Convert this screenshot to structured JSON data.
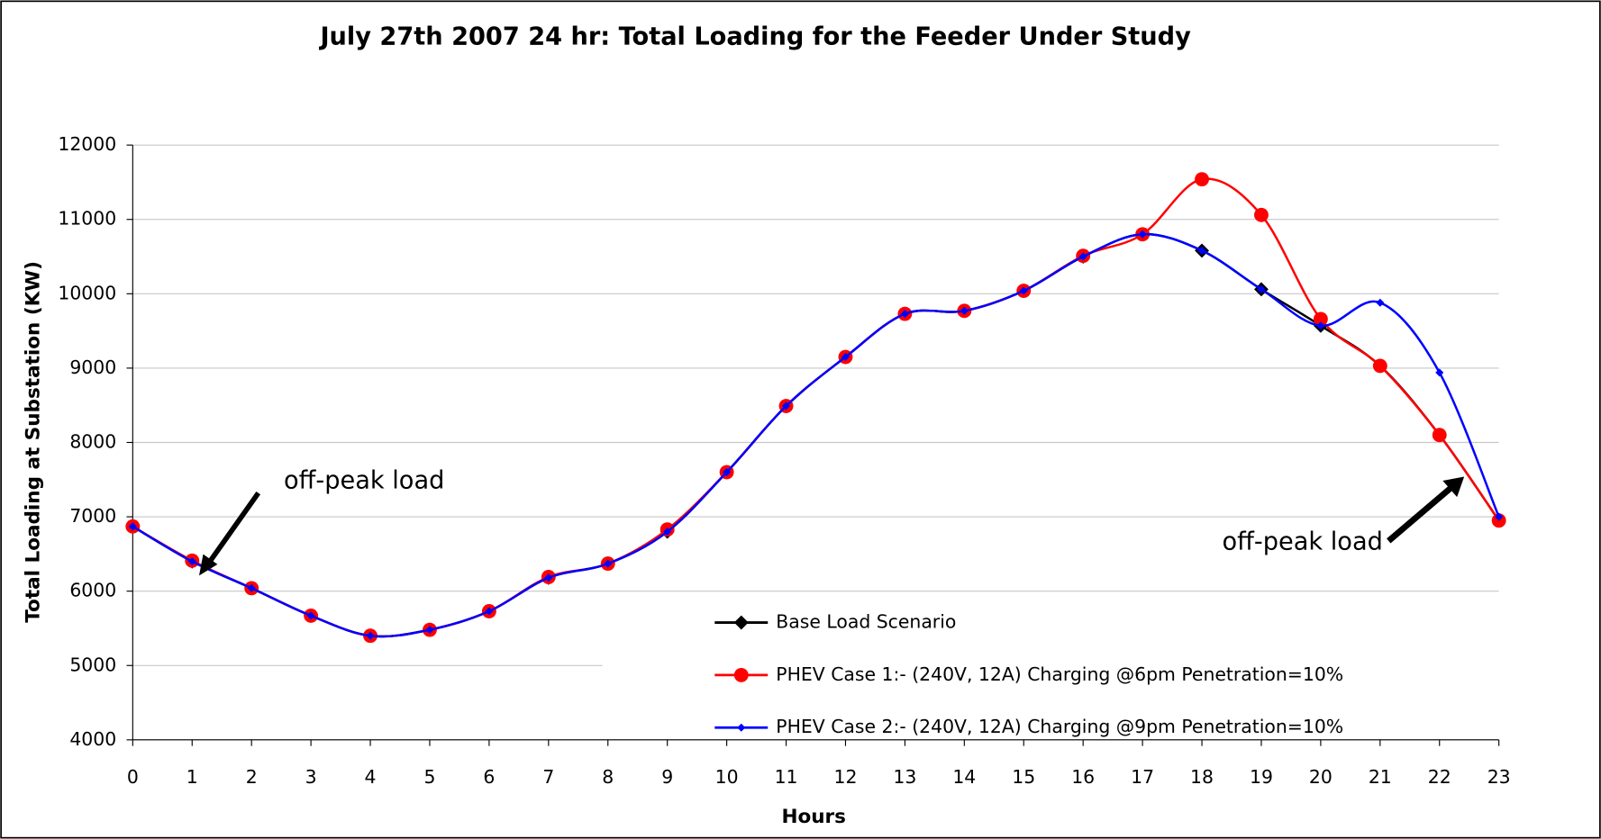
{
  "chart_data": {
    "type": "line",
    "title": "July 27th 2007 24 hr: Total Loading for the Feeder Under Study",
    "x_label": "Hours",
    "y_label": "Total Loading at Substation (KW)",
    "categories": [
      "0",
      "1",
      "2",
      "3",
      "4",
      "5",
      "6",
      "7",
      "8",
      "9",
      "10",
      "11",
      "12",
      "13",
      "14",
      "15",
      "16",
      "17",
      "18",
      "19",
      "20",
      "21",
      "22",
      "23"
    ],
    "series": [
      {
        "name": "Base Load Scenario",
        "color": "#000000",
        "marker": "diamond",
        "marker_size": 7,
        "values": [
          6870,
          6400,
          6040,
          5670,
          5400,
          5480,
          5730,
          6180,
          6370,
          6800,
          7600,
          8490,
          9150,
          9730,
          9770,
          10040,
          10500,
          10800,
          10580,
          10060,
          9570,
          9030,
          8100,
          6950
        ]
      },
      {
        "name": "PHEV Case 1:- (240V, 12A) Charging @6pm Penetration=10%",
        "color": "#ff0000",
        "marker": "circle",
        "marker_size": 7,
        "values": [
          6870,
          6410,
          6040,
          5670,
          5400,
          5480,
          5730,
          6190,
          6370,
          6830,
          7600,
          8490,
          9150,
          9730,
          9770,
          10040,
          10510,
          10800,
          11540,
          11060,
          9660,
          9030,
          8100,
          6950
        ]
      },
      {
        "name": "PHEV Case 2:- (240V, 12A) Charging @9pm Penetration=10%",
        "color": "#0000ff",
        "marker": "diamond",
        "marker_size": 4,
        "values": [
          6870,
          6400,
          6040,
          5670,
          5400,
          5480,
          5730,
          6180,
          6370,
          6800,
          7600,
          8490,
          9150,
          9730,
          9770,
          10040,
          10500,
          10800,
          10580,
          10060,
          9570,
          9880,
          8940,
          7000
        ]
      }
    ],
    "ylim": [
      4000,
      12000
    ],
    "yticks": [
      4000,
      5000,
      6000,
      7000,
      8000,
      9000,
      10000,
      11000,
      12000
    ],
    "grid": true,
    "legend": "lower right",
    "annotations": [
      {
        "text": "off-peak load"
      },
      {
        "text": "off-peak load"
      }
    ]
  }
}
